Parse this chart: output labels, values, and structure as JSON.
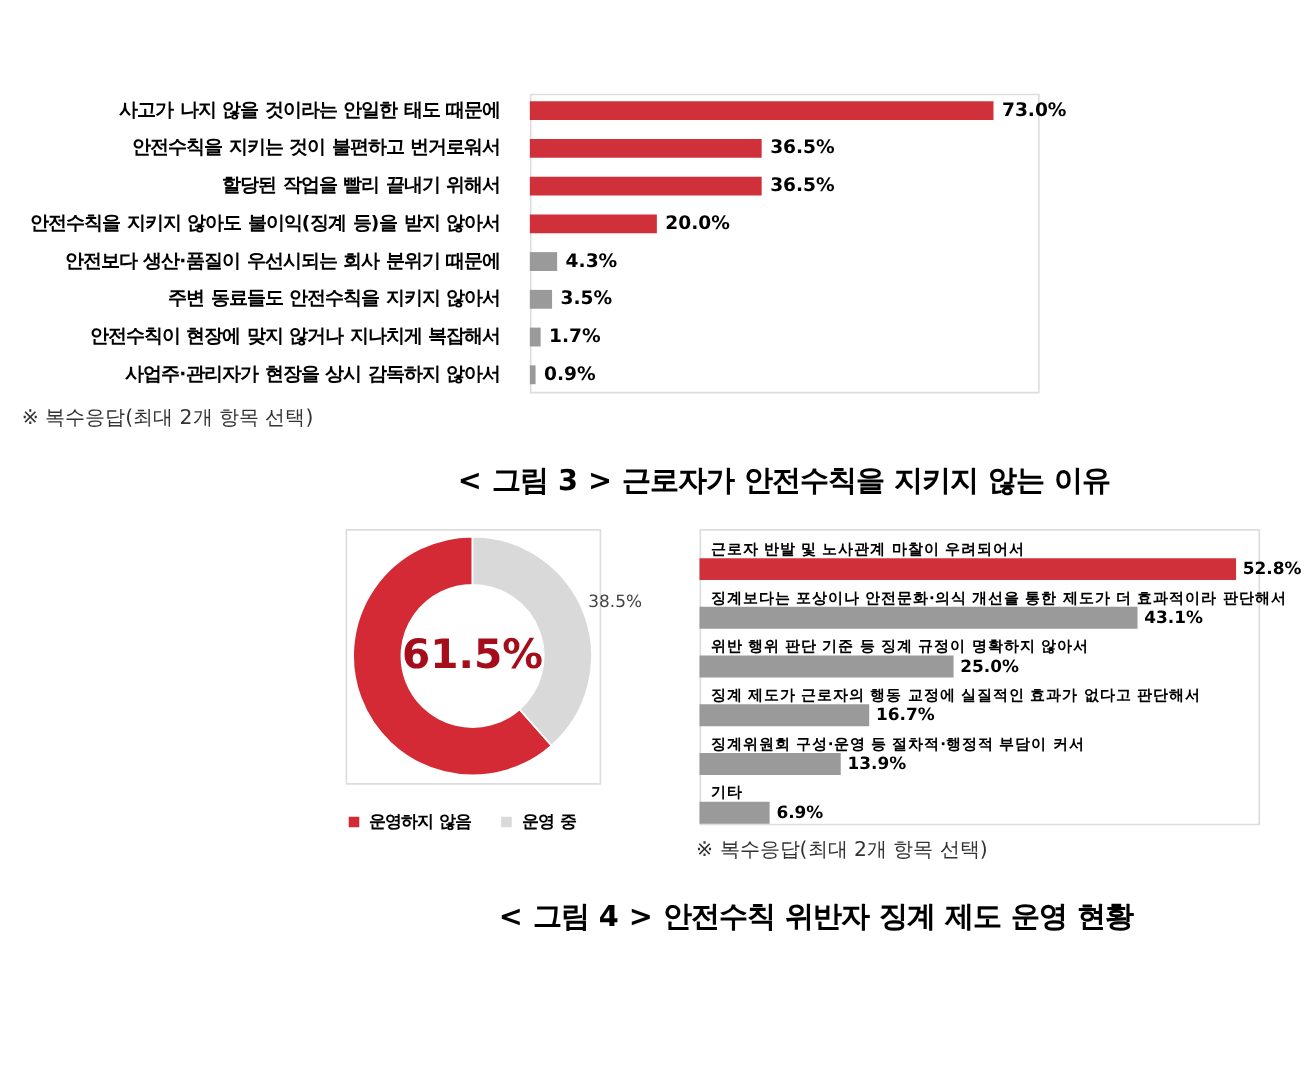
{
  "chart_data": [
    {
      "type": "bar",
      "orientation": "horizontal",
      "title": "< 그림 3 > 근로자가 안전수칙을 지키지 않는 이유",
      "categories": [
        "사고가 나지 않을 것이라는 안일한 태도 때문에",
        "안전수칙을 지키는 것이 불편하고 번거로워서",
        "할당된 작업을 빨리 끝내기 위해서",
        "안전수칙을 지키지 않아도 불이익(징계 등)을 받지 않아서",
        "안전보다 생산·품질이 우선시되는 회사 분위기 때문에",
        "주변 동료들도 안전수칙을 지키지 않아서",
        "안전수칙이 현장에 맞지 않거나 지나치게 복잡해서",
        "사업주·관리자가 현장을 상시 감독하지 않아서"
      ],
      "values": [
        73.0,
        36.5,
        36.5,
        20.0,
        4.3,
        3.5,
        1.7,
        0.9
      ],
      "value_labels": [
        "73.0%",
        "36.5%",
        "36.5%",
        "20.0%",
        "4.3%",
        "3.5%",
        "1.7%",
        "0.9%"
      ],
      "colors": [
        "#d0303a",
        "#d0303a",
        "#d0303a",
        "#d0303a",
        "#9a9a9a",
        "#9a9a9a",
        "#9a9a9a",
        "#9a9a9a"
      ],
      "annotations": [
        "※ 복수응답(최대 2개 항목 선택)"
      ]
    },
    {
      "type": "donut",
      "title": "< 그림 4 > 안전수칙 위반자 징계 제도 운영 현황",
      "categories": [
        "운영하지 않음",
        "운영 중"
      ],
      "values": [
        61.5,
        38.5
      ],
      "value_labels": [
        "61.5%",
        "38.5%"
      ],
      "colors": [
        "#d42a35",
        "#d9d9d9"
      ],
      "legend": "bottom"
    },
    {
      "type": "bar",
      "orientation": "horizontal",
      "categories": [
        "근로자 반발 및 노사관계 마찰이 우려되어서",
        "징계보다는 포상이나 안전문화·의식 개선을 통한 제도가 더 효과적이라 판단해서",
        "위반 행위 판단 기준 등 징계 규정이 명확하지 않아서",
        "징계 제도가 근로자의 행동 교정에 실질적인 효과가 없다고 판단해서",
        "징계위원회 구성·운영 등 절차적·행정적 부담이 커서",
        "기타"
      ],
      "values": [
        52.8,
        43.1,
        25.0,
        16.7,
        13.9,
        6.9
      ],
      "value_labels": [
        "52.8%",
        "43.1%",
        "25.0%",
        "16.7%",
        "13.9%",
        "6.9%"
      ],
      "colors": [
        "#d0303a",
        "#9a9a9a",
        "#9a9a9a",
        "#9a9a9a",
        "#9a9a9a",
        "#9a9a9a"
      ],
      "annotations": [
        "※ 복수응답(최대 2개 항목 선택)"
      ]
    }
  ]
}
